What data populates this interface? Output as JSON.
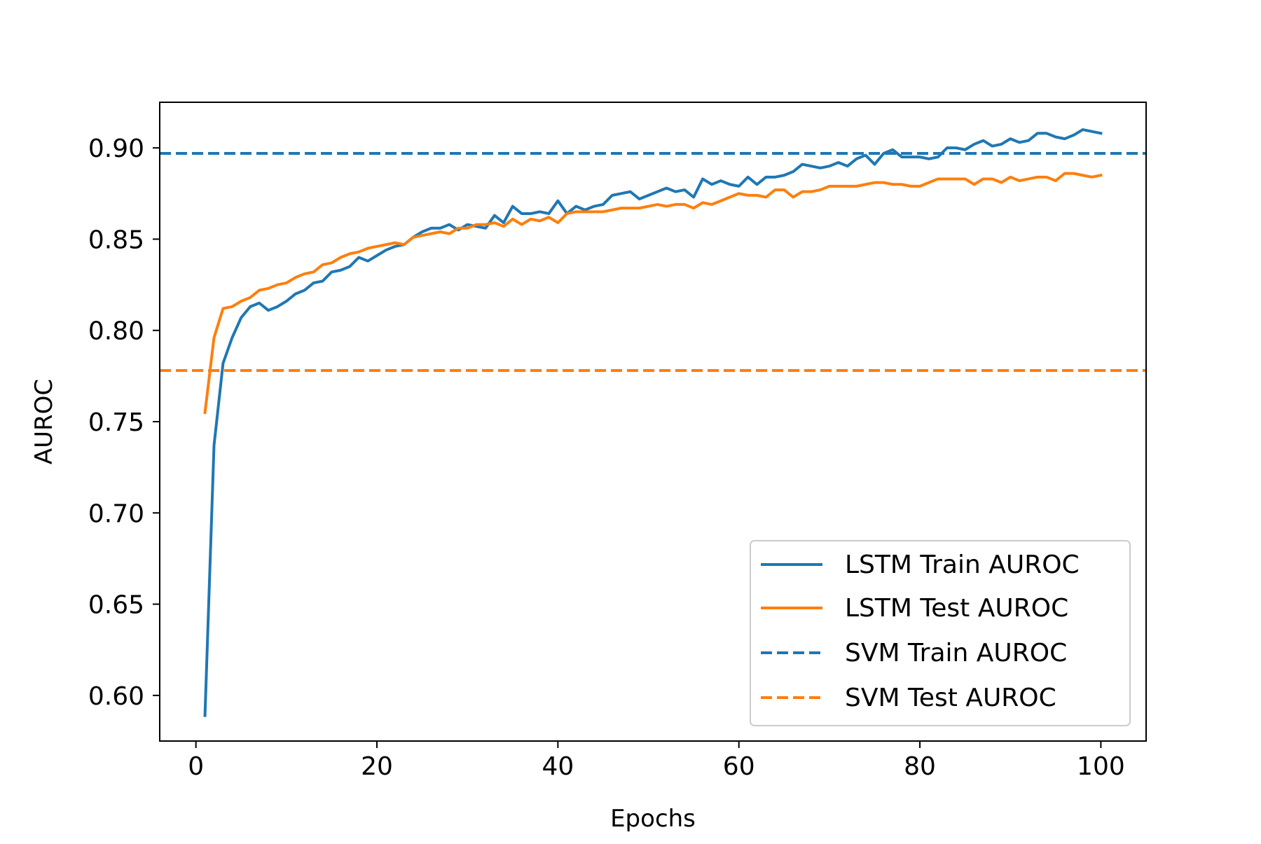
{
  "colors": {
    "lstm_train": "#1f77b4",
    "lstm_test": "#ff7f0e",
    "svm_train": "#1f77b4",
    "svm_test": "#ff7f0e",
    "axis": "#000000",
    "legend_border": "#cccccc"
  },
  "chart_data": {
    "type": "line",
    "title": "",
    "xlabel": "Epochs",
    "ylabel": "AUROC",
    "xlim": [
      -4,
      105
    ],
    "ylim": [
      0.575,
      0.925
    ],
    "xticks": [
      0,
      20,
      40,
      60,
      80,
      100
    ],
    "xtick_labels": [
      "0",
      "20",
      "40",
      "60",
      "80",
      "100"
    ],
    "yticks": [
      0.6,
      0.65,
      0.7,
      0.75,
      0.8,
      0.85,
      0.9
    ],
    "ytick_labels": [
      "0.60",
      "0.65",
      "0.70",
      "0.75",
      "0.80",
      "0.85",
      "0.90"
    ],
    "grid": false,
    "legend_position": "lower-right",
    "series": [
      {
        "name": "LSTM Train AUROC",
        "style": "solid",
        "x_start": 1,
        "x_step": 1,
        "values": [
          0.589,
          0.737,
          0.782,
          0.796,
          0.807,
          0.813,
          0.815,
          0.811,
          0.813,
          0.816,
          0.82,
          0.822,
          0.826,
          0.827,
          0.832,
          0.833,
          0.835,
          0.84,
          0.838,
          0.841,
          0.844,
          0.846,
          0.847,
          0.851,
          0.854,
          0.856,
          0.856,
          0.858,
          0.855,
          0.858,
          0.857,
          0.856,
          0.863,
          0.859,
          0.868,
          0.864,
          0.864,
          0.865,
          0.864,
          0.871,
          0.864,
          0.868,
          0.866,
          0.868,
          0.869,
          0.874,
          0.875,
          0.876,
          0.872,
          0.874,
          0.876,
          0.878,
          0.876,
          0.877,
          0.873,
          0.883,
          0.88,
          0.882,
          0.88,
          0.879,
          0.884,
          0.88,
          0.884,
          0.884,
          0.885,
          0.887,
          0.891,
          0.89,
          0.889,
          0.89,
          0.892,
          0.89,
          0.894,
          0.896,
          0.891,
          0.897,
          0.899,
          0.895,
          0.895,
          0.895,
          0.894,
          0.895,
          0.9,
          0.9,
          0.899,
          0.902,
          0.904,
          0.901,
          0.902,
          0.905,
          0.903,
          0.904,
          0.908,
          0.908,
          0.906,
          0.905,
          0.907,
          0.91,
          0.909,
          0.908
        ]
      },
      {
        "name": "LSTM Test AUROC",
        "style": "solid",
        "x_start": 1,
        "x_step": 1,
        "values": [
          0.755,
          0.796,
          0.812,
          0.813,
          0.816,
          0.818,
          0.822,
          0.823,
          0.825,
          0.826,
          0.829,
          0.831,
          0.832,
          0.836,
          0.837,
          0.84,
          0.842,
          0.843,
          0.845,
          0.846,
          0.847,
          0.848,
          0.847,
          0.851,
          0.852,
          0.853,
          0.854,
          0.853,
          0.856,
          0.856,
          0.858,
          0.858,
          0.859,
          0.857,
          0.861,
          0.858,
          0.861,
          0.86,
          0.862,
          0.859,
          0.864,
          0.865,
          0.865,
          0.865,
          0.865,
          0.866,
          0.867,
          0.867,
          0.867,
          0.868,
          0.869,
          0.868,
          0.869,
          0.869,
          0.867,
          0.87,
          0.869,
          0.871,
          0.873,
          0.875,
          0.874,
          0.874,
          0.873,
          0.877,
          0.877,
          0.873,
          0.876,
          0.876,
          0.877,
          0.879,
          0.879,
          0.879,
          0.879,
          0.88,
          0.881,
          0.881,
          0.88,
          0.88,
          0.879,
          0.879,
          0.881,
          0.883,
          0.883,
          0.883,
          0.883,
          0.88,
          0.883,
          0.883,
          0.881,
          0.884,
          0.882,
          0.883,
          0.884,
          0.884,
          0.882,
          0.886,
          0.886,
          0.885,
          0.884,
          0.885
        ]
      },
      {
        "name": "SVM Train AUROC",
        "style": "dashed",
        "constant": 0.897
      },
      {
        "name": "SVM Test AUROC",
        "style": "dashed",
        "constant": 0.778
      }
    ]
  }
}
